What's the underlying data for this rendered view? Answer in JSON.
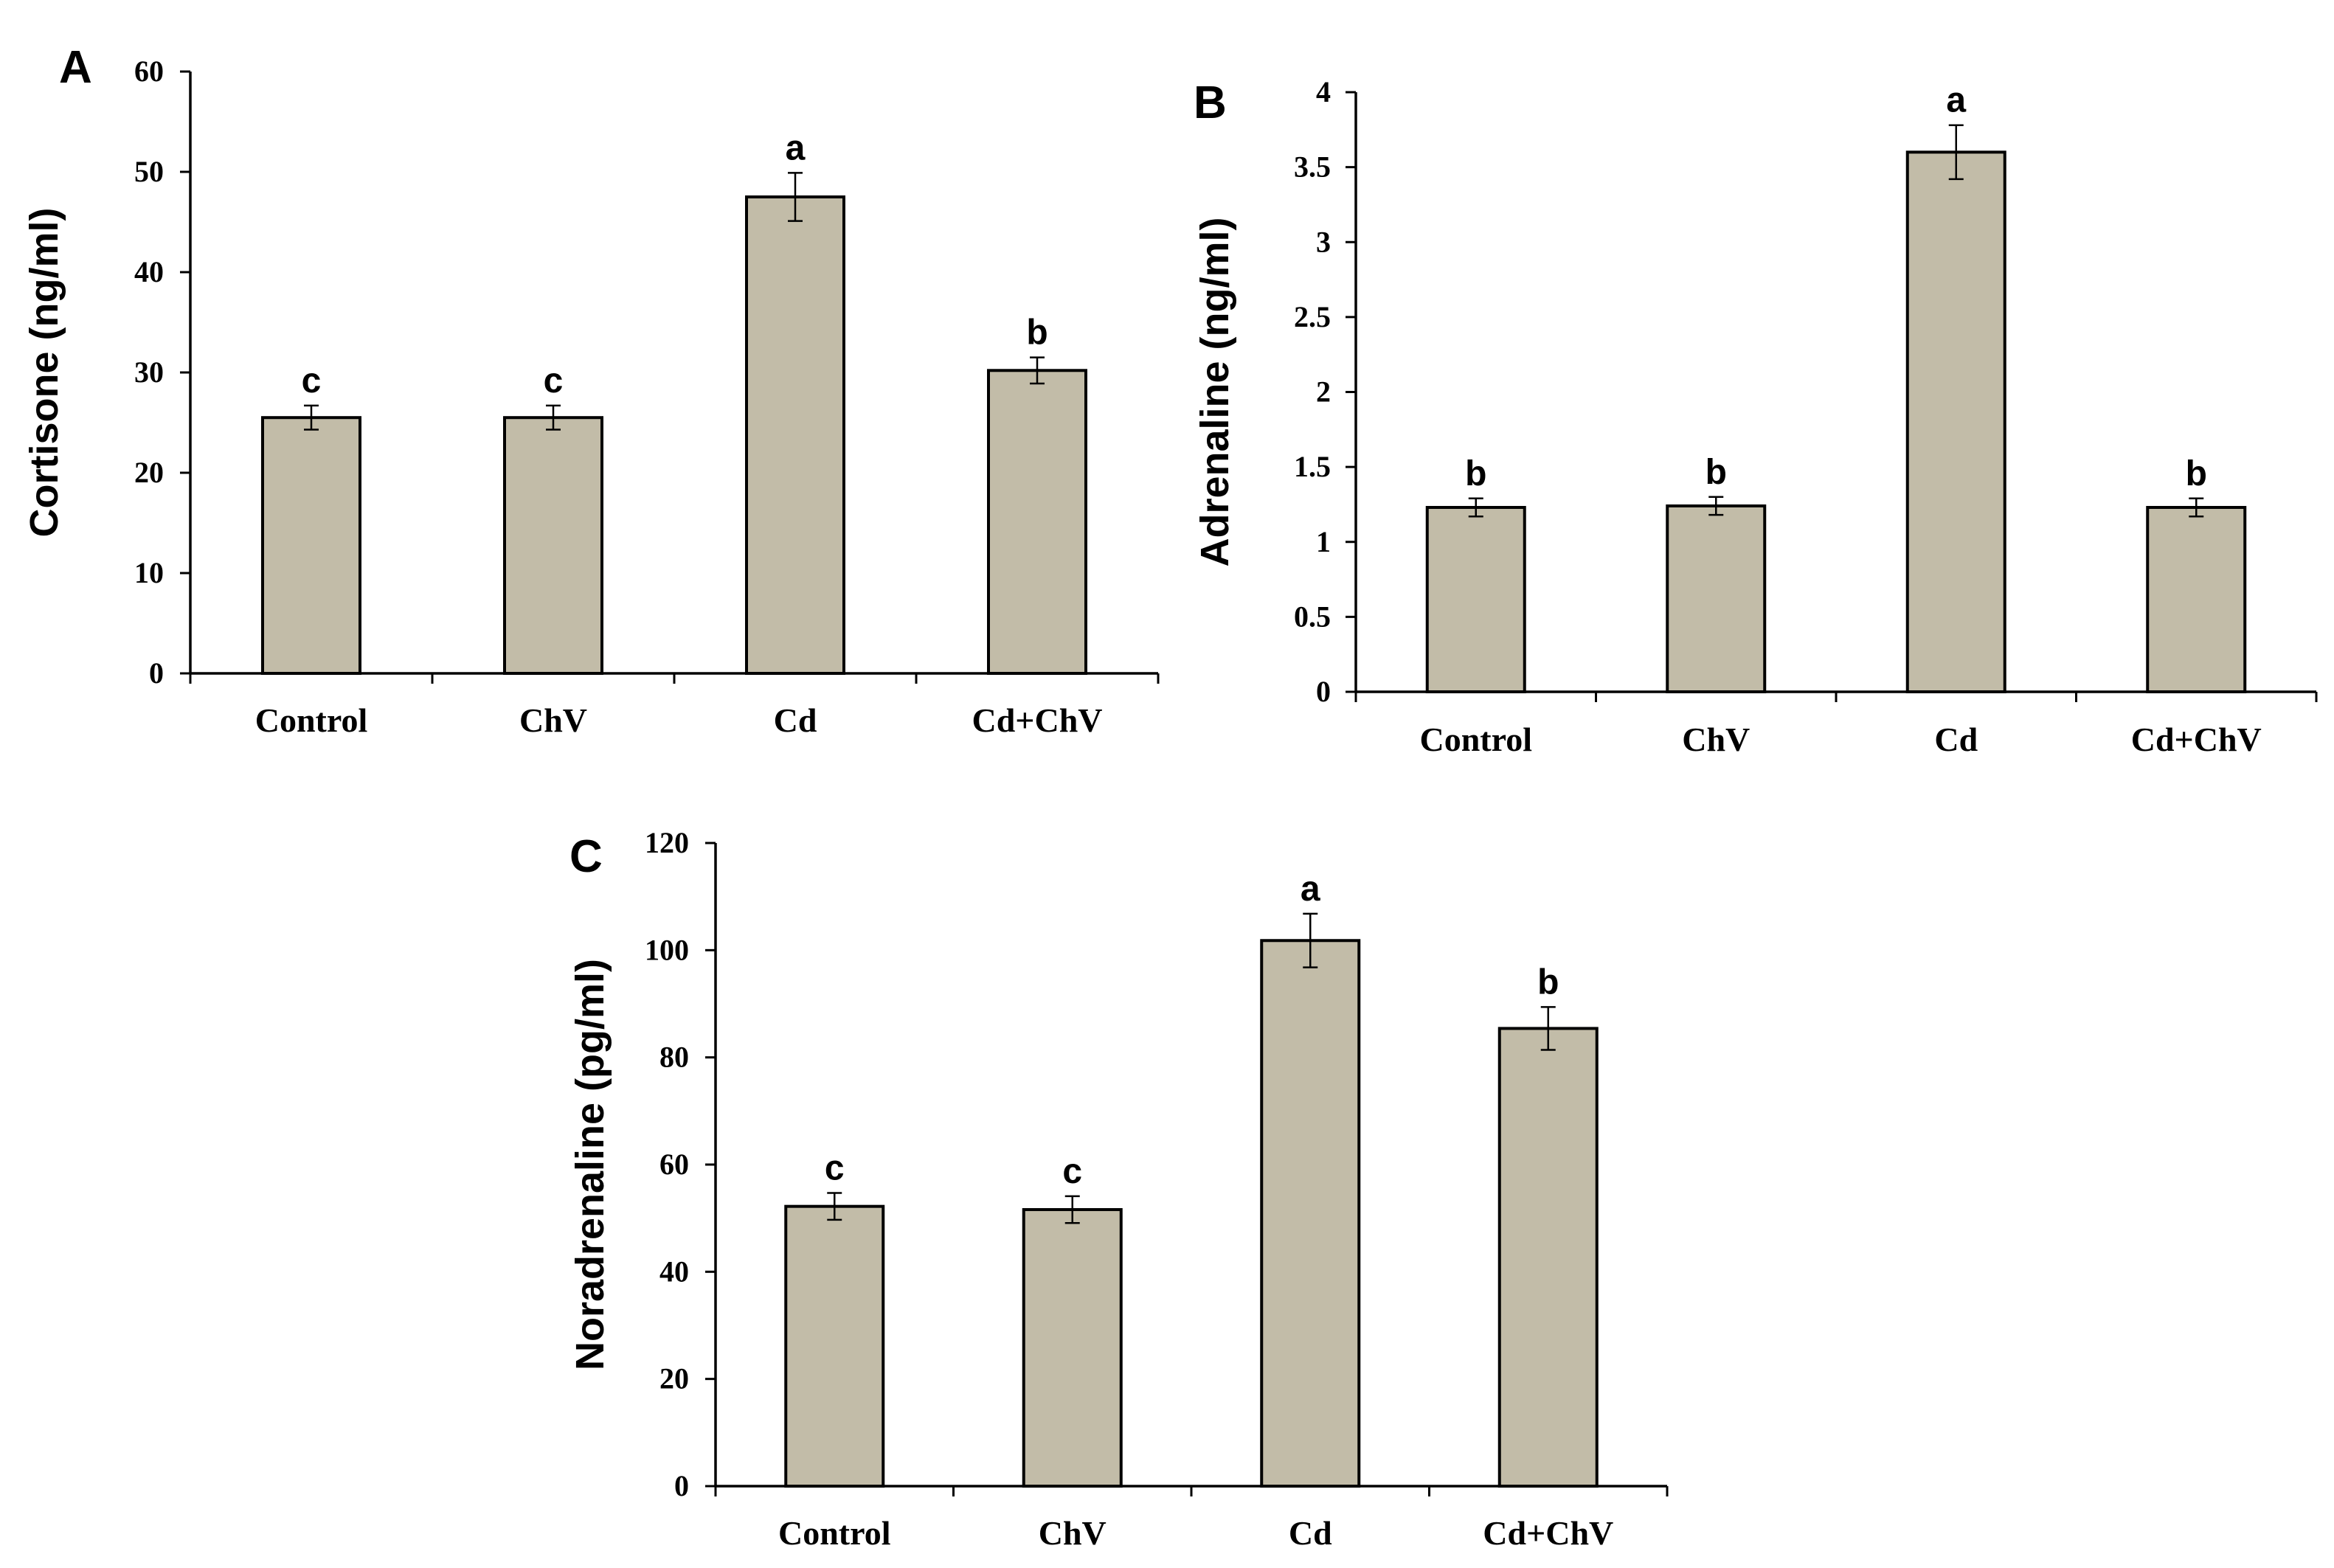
{
  "chart_data": [
    {
      "panel": "A",
      "type": "bar",
      "ylabel": "Cortisone  (ng/ml)",
      "categories": [
        "Control",
        "ChV",
        "Cd",
        "Cd+ChV"
      ],
      "values": [
        25.5,
        25.5,
        47.5,
        30.2
      ],
      "errors": [
        1.2,
        1.2,
        2.4,
        1.3
      ],
      "significance": [
        "c",
        "c",
        "a",
        "b"
      ],
      "ylim": [
        0,
        60
      ],
      "yticks": [
        0,
        10,
        20,
        30,
        40,
        50,
        60
      ],
      "ytick_labels": [
        "0",
        "10",
        "20",
        "30",
        "40",
        "50",
        "60"
      ]
    },
    {
      "panel": "B",
      "type": "bar",
      "ylabel": "Adrenaline (ng/ml)",
      "categories": [
        "Control",
        "ChV",
        "Cd",
        "Cd+ChV"
      ],
      "values": [
        1.23,
        1.24,
        3.6,
        1.23
      ],
      "errors": [
        0.06,
        0.06,
        0.18,
        0.06
      ],
      "significance": [
        "b",
        "b",
        "a",
        "b"
      ],
      "ylim": [
        0,
        4
      ],
      "yticks": [
        0,
        0.5,
        1,
        1.5,
        2,
        2.5,
        3,
        3.5,
        4
      ],
      "ytick_labels": [
        "0",
        "0.5",
        "1",
        "1.5",
        "2",
        "2.5",
        "3",
        "3.5",
        "4"
      ]
    },
    {
      "panel": "C",
      "type": "bar",
      "ylabel": "Noradrenaline (pg/ml)",
      "categories": [
        "Control",
        "ChV",
        "Cd",
        "Cd+ChV"
      ],
      "values": [
        52.2,
        51.6,
        101.8,
        85.4
      ],
      "errors": [
        2.5,
        2.5,
        5.0,
        4.0
      ],
      "significance": [
        "c",
        "c",
        "a",
        "b"
      ],
      "ylim": [
        0,
        120
      ],
      "yticks": [
        0,
        20,
        40,
        60,
        80,
        100,
        120
      ],
      "ytick_labels": [
        "0",
        "20",
        "40",
        "60",
        "80",
        "100",
        "120"
      ]
    }
  ]
}
